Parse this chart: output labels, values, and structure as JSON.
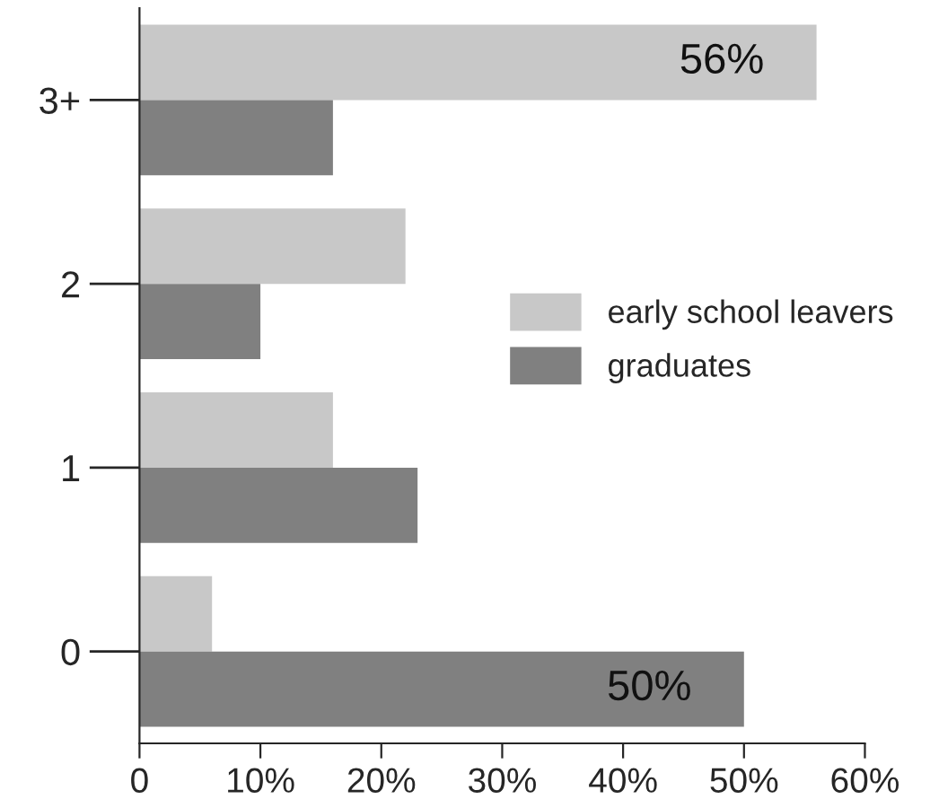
{
  "chart_data": {
    "type": "bar",
    "orientation": "horizontal",
    "categories": [
      "3+",
      "2",
      "1",
      "0"
    ],
    "series": [
      {
        "name": "early school leavers",
        "color": "#c8c8c8",
        "values": [
          56,
          22,
          16,
          6
        ],
        "value_labels": [
          "56%",
          null,
          null,
          null
        ]
      },
      {
        "name": "graduates",
        "color": "#808080",
        "values": [
          16,
          10,
          23,
          50
        ],
        "value_labels": [
          null,
          null,
          null,
          "50%"
        ]
      }
    ],
    "xlim": [
      0,
      60
    ],
    "xticks": [
      0,
      {
        "value": 10,
        "label": "10%"
      },
      {
        "value": 20,
        "label": "20%"
      },
      {
        "value": 30,
        "label": "30%"
      },
      {
        "value": 40,
        "label": "40%"
      },
      {
        "value": 50,
        "label": "50%"
      },
      {
        "value": 60,
        "label": "60%"
      }
    ],
    "grid": false,
    "legend": "right"
  }
}
